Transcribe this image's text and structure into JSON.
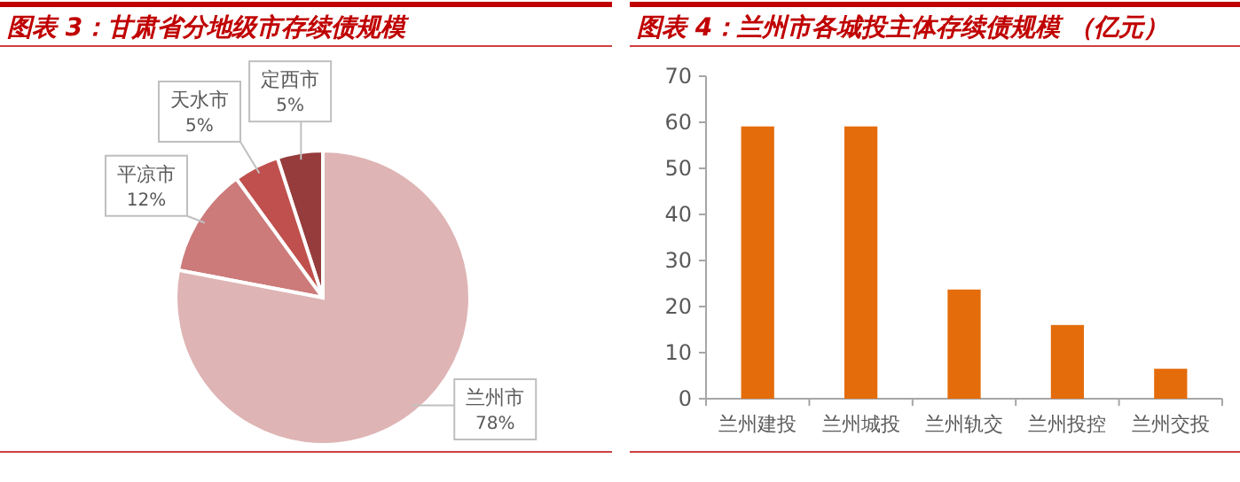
{
  "chart_data": [
    {
      "type": "pie",
      "title": "图表 3：甘肃省分地级市存续债规模",
      "categories": [
        "兰州市",
        "平凉市",
        "天水市",
        "定西市"
      ],
      "values": [
        78,
        12,
        5,
        5
      ],
      "colors": [
        "#dfb4b4",
        "#cc7a7a",
        "#c0504d",
        "#963c3c"
      ],
      "value_labels": [
        "78%",
        "12%",
        "5%",
        "5%"
      ]
    },
    {
      "type": "bar",
      "title": "图表 4：兰州市各城投主体存续债规模 （亿元）",
      "categories": [
        "兰州建投",
        "兰州城投",
        "兰州轨交",
        "兰州投控",
        "兰州交投"
      ],
      "values": [
        59.1,
        59.1,
        23.7,
        16.0,
        6.5
      ],
      "color": "#e46c0a",
      "ylim": [
        0,
        70
      ],
      "yticks": [
        0,
        10,
        20,
        30,
        40,
        50,
        60,
        70
      ],
      "grid": false
    }
  ]
}
